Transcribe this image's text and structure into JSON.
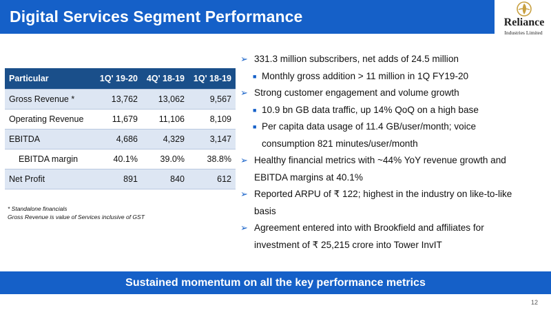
{
  "header": {
    "title": "Digital Services Segment Performance"
  },
  "logo": {
    "name": "Reliance",
    "subtitle": "Industries Limited",
    "mark": "reliance-logo-icon",
    "color": "#1560c8"
  },
  "table": {
    "headers": [
      "Particular",
      "1Q' 19-20",
      "4Q' 18-19",
      "1Q' 18-19"
    ],
    "rows": [
      {
        "label": "Gross Revenue *",
        "values": [
          "13,762",
          "13,062",
          "9,567"
        ]
      },
      {
        "label": "Operating Revenue",
        "values": [
          "11,679",
          "11,106",
          "8,109"
        ]
      },
      {
        "label": "EBITDA",
        "values": [
          "4,686",
          "4,329",
          "3,147"
        ]
      },
      {
        "label": "EBITDA margin",
        "values": [
          "40.1%",
          "39.0%",
          "38.8%"
        ]
      },
      {
        "label": "Net Profit",
        "values": [
          "891",
          "840",
          "612"
        ]
      }
    ]
  },
  "footnotes": {
    "line1": "* Standalone financials",
    "line2": "Gross Revenue is value of Services inclusive of GST"
  },
  "bullets": {
    "b1": "331.3 million subscribers, net adds of 24.5 million",
    "b1_1": "Monthly gross addition > 11 million in 1Q FY19-20",
    "b2": "Strong customer engagement and volume growth",
    "b2_1": "10.9 bn GB data traffic, up 14% QoQ on a high base",
    "b2_2a": "Per capita data usage of 11.4 GB/user/month; voice",
    "b2_2b": "consumption 821 minutes/user/month",
    "b3a": "Healthy financial metrics with ~44% YoY revenue growth and",
    "b3b": "EBITDA margins at 40.1%",
    "b4a": "Reported ARPU of ₹ 122; highest in the industry on like-to-like",
    "b4b": "basis",
    "b5a": "Agreement entered into with Brookfield and affiliates for",
    "b5b": "investment of ₹ 25,215 crore into Tower InvIT"
  },
  "banner": {
    "text": "Sustained momentum on all the key performance metrics"
  },
  "page_number": "12",
  "colors": {
    "primary_blue": "#1560c8",
    "table_header": "#1a4f8a",
    "row_shade": "#dde6f3"
  }
}
